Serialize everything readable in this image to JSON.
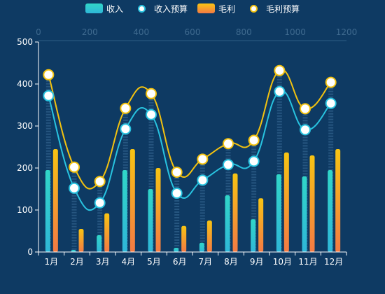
{
  "chart_data": {
    "type": "bar",
    "categories": [
      "1月",
      "2月",
      "3月",
      "4月",
      "5月",
      "6月",
      "7月",
      "8月",
      "9月",
      "10月",
      "11月",
      "12月"
    ],
    "ylim": [
      0,
      500
    ],
    "y_ticks": [
      "0",
      "100",
      "200",
      "300",
      "400",
      "500"
    ],
    "top_axis_ticks": [
      "0",
      "200",
      "400",
      "600",
      "800",
      "1000",
      "1200"
    ],
    "legend_placement": "top-center",
    "grid": false,
    "series": [
      {
        "name": "收入",
        "kind": "bar",
        "values": [
          195,
          5,
          40,
          195,
          150,
          10,
          22,
          135,
          78,
          185,
          180,
          195
        ],
        "color_top": "#30d6c8",
        "color_bottom": "#2fb7d8"
      },
      {
        "name": "收入预算",
        "kind": "line",
        "values": [
          372,
          152,
          117,
          293,
          327,
          140,
          171,
          208,
          216,
          382,
          291,
          354
        ],
        "color": "#28c3e0"
      },
      {
        "name": "毛利",
        "kind": "bar",
        "values": [
          245,
          55,
          92,
          245,
          200,
          62,
          75,
          187,
          128,
          237,
          230,
          245
        ],
        "color_top": "#f7c413",
        "color_bottom": "#f37a44"
      },
      {
        "name": "毛利预算",
        "kind": "line",
        "values": [
          422,
          202,
          168,
          342,
          377,
          190,
          221,
          258,
          266,
          432,
          341,
          404
        ],
        "color": "#f3c20f"
      }
    ]
  }
}
